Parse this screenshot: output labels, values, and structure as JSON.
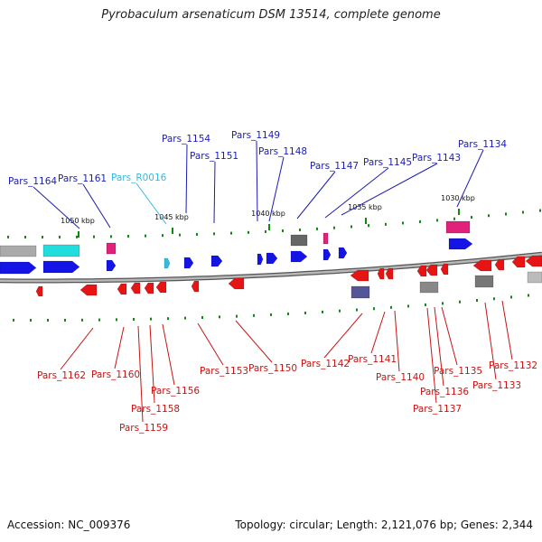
{
  "title": "Pyrobaculum arsenaticum DSM 13514, complete genome",
  "footer": {
    "accession": "Accession: NC_009376",
    "summary": "Topology: circular; Length: 2,121,076 bp; Genes: 2,344"
  },
  "colors": {
    "forward_gene": "#1414e6",
    "reverse_gene": "#e61414",
    "rna_gene": "#33bbdd",
    "forward_label": "#1c1cb4",
    "reverse_label": "#c81414",
    "rna_label": "#38b8e0",
    "tick": "#118811",
    "backbone": "#8a8a8a"
  },
  "ruler_labels": [
    "1050 kbp",
    "1045 kbp",
    "1040 kbp",
    "1035 kbp",
    "1030 kbp"
  ],
  "top_labels": [
    {
      "text": "Pars_1164",
      "strand": "forward"
    },
    {
      "text": "Pars_1161",
      "strand": "forward"
    },
    {
      "text": "Pars_R0016",
      "strand": "rna"
    },
    {
      "text": "Pars_1154",
      "strand": "forward"
    },
    {
      "text": "Pars_1151",
      "strand": "forward"
    },
    {
      "text": "Pars_1149",
      "strand": "forward"
    },
    {
      "text": "Pars_1148",
      "strand": "forward"
    },
    {
      "text": "Pars_1147",
      "strand": "forward"
    },
    {
      "text": "Pars_1145",
      "strand": "forward"
    },
    {
      "text": "Pars_1143",
      "strand": "forward"
    },
    {
      "text": "Pars_1134",
      "strand": "forward"
    }
  ],
  "bottom_labels": [
    {
      "text": "Pars_1162",
      "strand": "reverse"
    },
    {
      "text": "Pars_1160",
      "strand": "reverse"
    },
    {
      "text": "Pars_1156",
      "strand": "reverse"
    },
    {
      "text": "Pars_1158",
      "strand": "reverse"
    },
    {
      "text": "Pars_1159",
      "strand": "reverse"
    },
    {
      "text": "Pars_1153",
      "strand": "reverse"
    },
    {
      "text": "Pars_1150",
      "strand": "reverse"
    },
    {
      "text": "Pars_1142",
      "strand": "reverse"
    },
    {
      "text": "Pars_1141",
      "strand": "reverse"
    },
    {
      "text": "Pars_1140",
      "strand": "reverse"
    },
    {
      "text": "Pars_1135",
      "strand": "reverse"
    },
    {
      "text": "Pars_1136",
      "strand": "reverse"
    },
    {
      "text": "Pars_1137",
      "strand": "reverse"
    },
    {
      "text": "Pars_1132",
      "strand": "reverse"
    },
    {
      "text": "Pars_1133",
      "strand": "reverse"
    }
  ]
}
